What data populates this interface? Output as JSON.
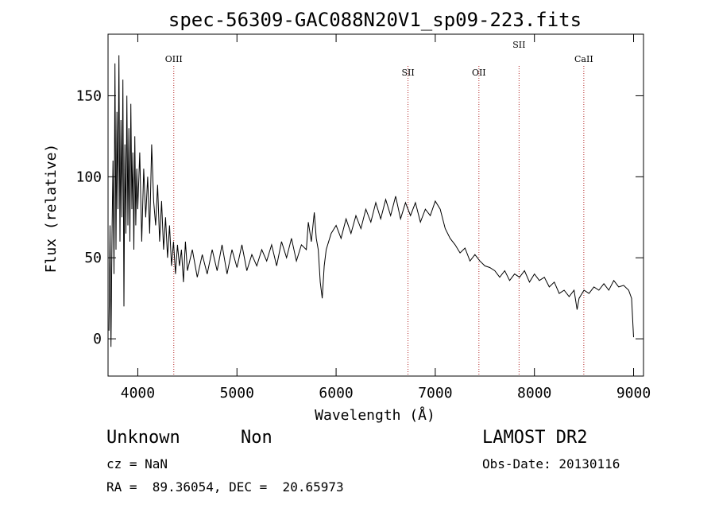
{
  "chart_data": {
    "type": "line",
    "title": "spec-56309-GAC088N20V1_sp09-223.fits",
    "xlabel": "Wavelength (Å)",
    "ylabel": "Flux (relative)",
    "xlim": [
      3700,
      9100
    ],
    "ylim": [
      -23,
      188
    ],
    "x_ticks": [
      4000,
      5000,
      6000,
      7000,
      8000,
      9000
    ],
    "y_ticks": [
      0,
      50,
      100,
      150
    ],
    "grid": false,
    "line_color": "#000000",
    "marker_color": "#b22222",
    "lines": [
      {
        "label": "OIII",
        "wavelength": 4363,
        "label_row": 0
      },
      {
        "label": "SII",
        "wavelength": 6725,
        "label_row": 1
      },
      {
        "label": "OII",
        "wavelength": 7440,
        "label_row": 1
      },
      {
        "label": "SII",
        "wavelength": 7845,
        "label_row": -1
      },
      {
        "label": "CaII",
        "wavelength": 8498,
        "label_row": 0
      }
    ],
    "series": [
      {
        "points": [
          [
            3710,
            5
          ],
          [
            3720,
            70
          ],
          [
            3730,
            -5
          ],
          [
            3740,
            65
          ],
          [
            3750,
            110
          ],
          [
            3760,
            40
          ],
          [
            3770,
            170
          ],
          [
            3780,
            55
          ],
          [
            3790,
            140
          ],
          [
            3800,
            80
          ],
          [
            3810,
            175
          ],
          [
            3820,
            60
          ],
          [
            3830,
            135
          ],
          [
            3840,
            75
          ],
          [
            3850,
            160
          ],
          [
            3860,
            20
          ],
          [
            3870,
            120
          ],
          [
            3880,
            65
          ],
          [
            3890,
            150
          ],
          [
            3900,
            70
          ],
          [
            3910,
            130
          ],
          [
            3920,
            60
          ],
          [
            3930,
            145
          ],
          [
            3940,
            80
          ],
          [
            3950,
            115
          ],
          [
            3960,
            55
          ],
          [
            3970,
            125
          ],
          [
            3980,
            70
          ],
          [
            3990,
            105
          ],
          [
            4000,
            80
          ],
          [
            4020,
            115
          ],
          [
            4040,
            60
          ],
          [
            4060,
            105
          ],
          [
            4080,
            75
          ],
          [
            4100,
            100
          ],
          [
            4120,
            65
          ],
          [
            4140,
            120
          ],
          [
            4160,
            85
          ],
          [
            4180,
            70
          ],
          [
            4200,
            95
          ],
          [
            4220,
            60
          ],
          [
            4240,
            85
          ],
          [
            4260,
            55
          ],
          [
            4280,
            75
          ],
          [
            4300,
            50
          ],
          [
            4320,
            70
          ],
          [
            4340,
            45
          ],
          [
            4360,
            60
          ],
          [
            4380,
            40
          ],
          [
            4400,
            58
          ],
          [
            4420,
            45
          ],
          [
            4440,
            55
          ],
          [
            4460,
            35
          ],
          [
            4480,
            60
          ],
          [
            4500,
            42
          ],
          [
            4550,
            55
          ],
          [
            4600,
            38
          ],
          [
            4650,
            52
          ],
          [
            4700,
            40
          ],
          [
            4750,
            55
          ],
          [
            4800,
            42
          ],
          [
            4850,
            58
          ],
          [
            4900,
            40
          ],
          [
            4950,
            55
          ],
          [
            5000,
            44
          ],
          [
            5050,
            58
          ],
          [
            5100,
            42
          ],
          [
            5150,
            52
          ],
          [
            5200,
            45
          ],
          [
            5250,
            55
          ],
          [
            5300,
            48
          ],
          [
            5350,
            58
          ],
          [
            5400,
            45
          ],
          [
            5450,
            60
          ],
          [
            5500,
            50
          ],
          [
            5550,
            62
          ],
          [
            5600,
            48
          ],
          [
            5650,
            58
          ],
          [
            5700,
            55
          ],
          [
            5720,
            72
          ],
          [
            5750,
            60
          ],
          [
            5780,
            78
          ],
          [
            5800,
            62
          ],
          [
            5820,
            55
          ],
          [
            5840,
            35
          ],
          [
            5860,
            25
          ],
          [
            5880,
            45
          ],
          [
            5900,
            55
          ],
          [
            5950,
            65
          ],
          [
            6000,
            70
          ],
          [
            6050,
            62
          ],
          [
            6100,
            74
          ],
          [
            6150,
            65
          ],
          [
            6200,
            76
          ],
          [
            6250,
            68
          ],
          [
            6300,
            80
          ],
          [
            6350,
            72
          ],
          [
            6400,
            84
          ],
          [
            6450,
            74
          ],
          [
            6500,
            86
          ],
          [
            6550,
            76
          ],
          [
            6600,
            88
          ],
          [
            6650,
            74
          ],
          [
            6700,
            84
          ],
          [
            6750,
            76
          ],
          [
            6800,
            84
          ],
          [
            6850,
            72
          ],
          [
            6900,
            80
          ],
          [
            6950,
            76
          ],
          [
            7000,
            85
          ],
          [
            7050,
            80
          ],
          [
            7100,
            68
          ],
          [
            7150,
            62
          ],
          [
            7200,
            58
          ],
          [
            7250,
            53
          ],
          [
            7300,
            56
          ],
          [
            7350,
            48
          ],
          [
            7400,
            52
          ],
          [
            7450,
            48
          ],
          [
            7500,
            45
          ],
          [
            7550,
            44
          ],
          [
            7600,
            42
          ],
          [
            7650,
            38
          ],
          [
            7700,
            42
          ],
          [
            7750,
            36
          ],
          [
            7800,
            40
          ],
          [
            7850,
            38
          ],
          [
            7900,
            42
          ],
          [
            7950,
            35
          ],
          [
            8000,
            40
          ],
          [
            8050,
            36
          ],
          [
            8100,
            38
          ],
          [
            8150,
            32
          ],
          [
            8200,
            35
          ],
          [
            8250,
            28
          ],
          [
            8300,
            30
          ],
          [
            8350,
            26
          ],
          [
            8400,
            30
          ],
          [
            8430,
            18
          ],
          [
            8450,
            25
          ],
          [
            8500,
            30
          ],
          [
            8550,
            28
          ],
          [
            8600,
            32
          ],
          [
            8650,
            30
          ],
          [
            8700,
            34
          ],
          [
            8750,
            30
          ],
          [
            8800,
            36
          ],
          [
            8850,
            32
          ],
          [
            8900,
            33
          ],
          [
            8950,
            30
          ],
          [
            8980,
            25
          ],
          [
            9000,
            1
          ]
        ]
      }
    ]
  },
  "footer": {
    "object_class": "Unknown",
    "subclass": "Non",
    "survey": "LAMOST DR2",
    "cz": "cz = NaN",
    "obs_date": "Obs-Date: 20130116",
    "coords": "RA =  89.36054, DEC =  20.65973"
  }
}
